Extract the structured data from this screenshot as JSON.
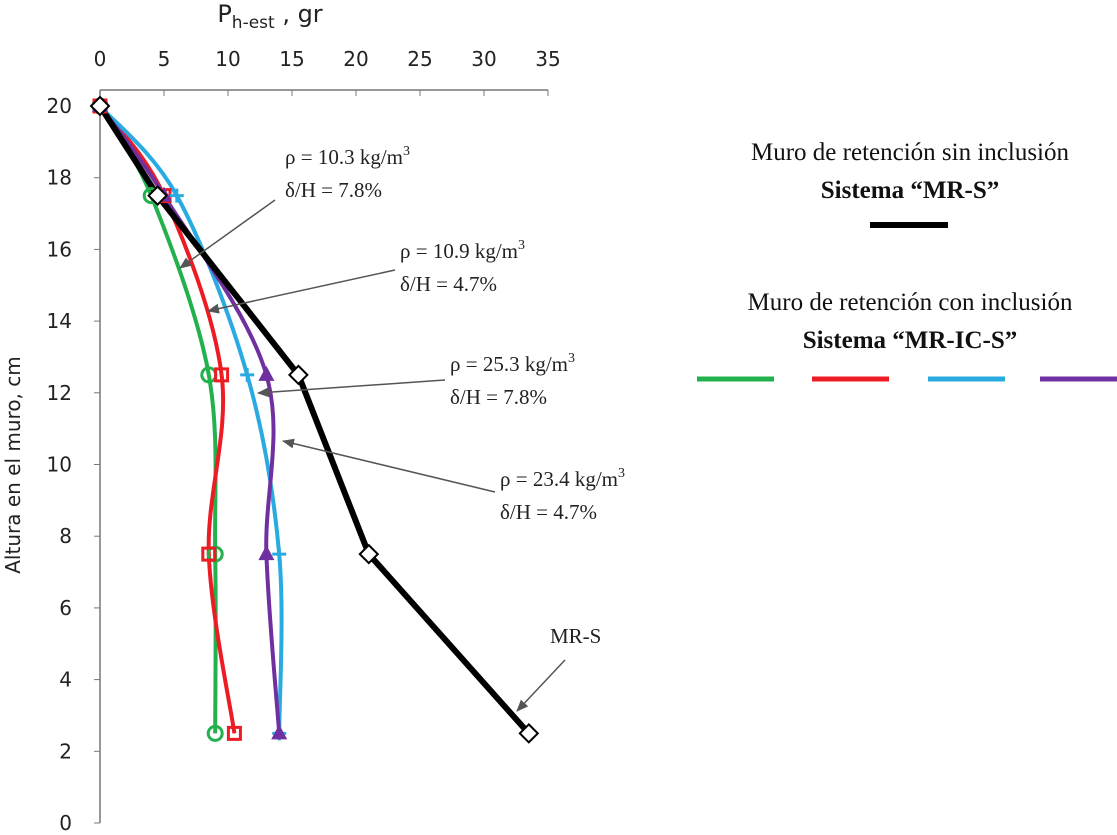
{
  "chart_data": {
    "type": "line",
    "x_label": {
      "main": "P",
      "sub": "h-est",
      "rest": " , gr"
    },
    "y_label": "Altura en el muro, cm",
    "xlim": [
      0,
      35
    ],
    "xticks": [
      0,
      5,
      10,
      15,
      20,
      25,
      30,
      35
    ],
    "ylim": [
      0,
      20
    ],
    "yticks": [
      0,
      2,
      4,
      6,
      8,
      10,
      12,
      14,
      16,
      18,
      20
    ],
    "series": [
      {
        "color": "#000000",
        "marker": "diamond",
        "smooth": false,
        "x": [
          0,
          4.5,
          15.5,
          21,
          33.5
        ],
        "values": [
          20,
          17.5,
          12.5,
          7.5,
          2.5
        ]
      },
      {
        "color": "#22b14c",
        "marker": "circle",
        "smooth": true,
        "x": [
          0,
          4,
          8.5,
          9,
          9
        ],
        "values": [
          20,
          17.5,
          12.5,
          7.5,
          2.5
        ]
      },
      {
        "color": "#ed1c24",
        "marker": "square",
        "smooth": true,
        "x": [
          0,
          5,
          9.5,
          8.5,
          10.5
        ],
        "values": [
          20,
          17.5,
          12.5,
          7.5,
          2.5
        ]
      },
      {
        "color": "#29abe2",
        "marker": "plus",
        "smooth": true,
        "x": [
          0,
          6,
          11.5,
          14,
          14
        ],
        "values": [
          20,
          17.5,
          12.5,
          7.5,
          2.5
        ]
      },
      {
        "color": "#7030a0",
        "marker": "triangle",
        "smooth": true,
        "x": [
          0,
          5,
          13,
          13,
          14
        ],
        "values": [
          20,
          17.5,
          12.5,
          7.5,
          2.5
        ]
      }
    ],
    "annotations": [
      {
        "text": "ρ = 10.3 kg/m",
        "sup": "3",
        "line2": "δ/H = 7.8%"
      },
      {
        "text": "ρ = 10.9 kg/m",
        "sup": "3",
        "line2": "δ/H = 4.7%"
      },
      {
        "text": "ρ = 25.3 kg/m",
        "sup": "3",
        "line2": "δ/H = 7.8%"
      },
      {
        "text": "ρ = 23.4 kg/m",
        "sup": "3",
        "line2": "δ/H = 4.7%"
      },
      {
        "text": "MR-S"
      }
    ],
    "legend_groups": [
      {
        "text": "Muro de retención sin inclusión",
        "subtext": "Sistema “MR-S”"
      },
      {
        "text": "Muro de retención con inclusión",
        "subtext": "Sistema “MR-IC-S”"
      }
    ]
  }
}
